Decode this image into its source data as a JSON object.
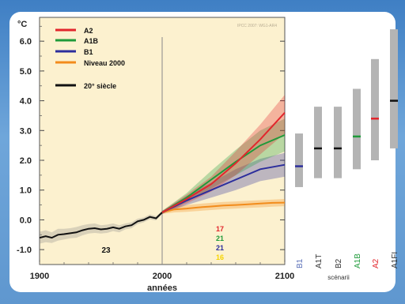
{
  "chart_data": {
    "type": "line",
    "ylabel": "°C",
    "xlabel": "années",
    "xlim": [
      1900,
      2100
    ],
    "ylim": [
      -1.5,
      6.8
    ],
    "x_ticks": [
      "1900",
      "2000",
      "2100"
    ],
    "y_ticks": [
      "6.0",
      "5.0",
      "4.0",
      "3.0",
      "2.0",
      "1.0",
      "0.0",
      "-1.0"
    ],
    "watermark": "IPCC 2007: WG1-AR4",
    "series": [
      {
        "name": "A2",
        "color": "#e2262c",
        "x": [
          2000,
          2020,
          2040,
          2060,
          2080,
          2100
        ],
        "y": [
          0.25,
          0.7,
          1.2,
          1.9,
          2.7,
          3.6
        ],
        "band_low": [
          0.2,
          0.55,
          0.95,
          1.5,
          2.2,
          2.9
        ],
        "band_high": [
          0.3,
          0.85,
          1.45,
          2.3,
          3.2,
          4.2
        ]
      },
      {
        "name": "A1B",
        "color": "#1f9a3a",
        "x": [
          2000,
          2020,
          2040,
          2060,
          2080,
          2100
        ],
        "y": [
          0.25,
          0.75,
          1.35,
          1.95,
          2.5,
          2.85
        ],
        "band_low": [
          0.2,
          0.6,
          1.05,
          1.5,
          1.95,
          2.3
        ],
        "band_high": [
          0.3,
          0.9,
          1.65,
          2.35,
          3.0,
          3.4
        ]
      },
      {
        "name": "B1",
        "color": "#2c2e9c",
        "x": [
          2000,
          2020,
          2040,
          2060,
          2080,
          2100
        ],
        "y": [
          0.25,
          0.65,
          1.0,
          1.35,
          1.7,
          1.85
        ],
        "band_low": [
          0.2,
          0.5,
          0.75,
          1.0,
          1.3,
          1.45
        ],
        "band_high": [
          0.3,
          0.8,
          1.25,
          1.7,
          2.05,
          2.25
        ]
      },
      {
        "name": "Niveau 2000",
        "color": "#f28c1c",
        "x": [
          2000,
          2010,
          2020,
          2030,
          2040,
          2050,
          2060,
          2070,
          2080,
          2090,
          2100
        ],
        "y": [
          0.25,
          0.35,
          0.38,
          0.42,
          0.45,
          0.48,
          0.5,
          0.52,
          0.55,
          0.57,
          0.58
        ],
        "band_low": [
          0.2,
          0.25,
          0.27,
          0.3,
          0.33,
          0.36,
          0.38,
          0.4,
          0.42,
          0.44,
          0.46
        ],
        "band_high": [
          0.3,
          0.45,
          0.5,
          0.54,
          0.57,
          0.6,
          0.62,
          0.64,
          0.66,
          0.68,
          0.7
        ]
      },
      {
        "name": "20° siècle",
        "color": "#111111",
        "x": [
          1900,
          1905,
          1910,
          1915,
          1920,
          1925,
          1930,
          1935,
          1940,
          1945,
          1950,
          1955,
          1960,
          1965,
          1970,
          1975,
          1980,
          1985,
          1990,
          1995,
          2000
        ],
        "y": [
          -0.6,
          -0.55,
          -0.6,
          -0.5,
          -0.48,
          -0.45,
          -0.42,
          -0.35,
          -0.3,
          -0.28,
          -0.32,
          -0.3,
          -0.25,
          -0.3,
          -0.22,
          -0.18,
          -0.05,
          0.0,
          0.1,
          0.05,
          0.25
        ],
        "band_low": [
          -0.8,
          -0.75,
          -0.78,
          -0.7,
          -0.66,
          -0.62,
          -0.6,
          -0.52,
          -0.46,
          -0.44,
          -0.46,
          -0.44,
          -0.38,
          -0.42,
          -0.32,
          -0.28,
          -0.14,
          -0.08,
          0.02,
          -0.02,
          0.2
        ],
        "band_high": [
          -0.4,
          -0.35,
          -0.42,
          -0.3,
          -0.3,
          -0.28,
          -0.24,
          -0.18,
          -0.14,
          -0.12,
          -0.18,
          -0.16,
          -0.12,
          -0.18,
          -0.12,
          -0.08,
          0.04,
          0.08,
          0.18,
          0.12,
          0.3
        ]
      }
    ],
    "model_counts": [
      {
        "label": "17",
        "color": "#e2262c"
      },
      {
        "label": "21",
        "color": "#1f9a3a"
      },
      {
        "label": "21",
        "color": "#2c2e9c"
      },
      {
        "label": "16",
        "color": "#f5d400"
      }
    ],
    "model_count_20th": "23",
    "scenario_bars": {
      "xlabel": "scénarii",
      "items": [
        {
          "name": "B1",
          "color": "#5a6fb8",
          "low": 1.1,
          "high": 2.9,
          "best": 1.8,
          "best_color": "#2c2e9c"
        },
        {
          "name": "A1T",
          "color": "#333333",
          "low": 1.4,
          "high": 3.8,
          "best": 2.4,
          "best_color": "#111111"
        },
        {
          "name": "B2",
          "color": "#333333",
          "low": 1.4,
          "high": 3.8,
          "best": 2.4,
          "best_color": "#111111"
        },
        {
          "name": "A1B",
          "color": "#1f9a3a",
          "low": 1.7,
          "high": 4.4,
          "best": 2.8,
          "best_color": "#1f9a3a"
        },
        {
          "name": "A2",
          "color": "#e2262c",
          "low": 2.0,
          "high": 5.4,
          "best": 3.4,
          "best_color": "#e2262c"
        },
        {
          "name": "A1FI",
          "color": "#333333",
          "low": 2.4,
          "high": 6.4,
          "best": 4.0,
          "best_color": "#111111"
        }
      ]
    }
  }
}
